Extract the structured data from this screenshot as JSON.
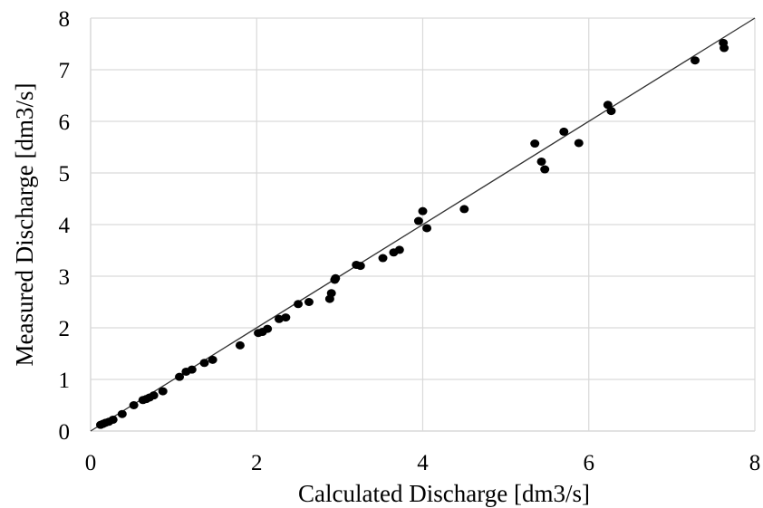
{
  "chart_data": {
    "type": "scatter",
    "title": "",
    "xlabel": "Calculated Discharge [dm3/s]",
    "ylabel": "Measured Discharge [dm3/s]",
    "xlim": [
      0,
      8
    ],
    "ylim": [
      0,
      8
    ],
    "x_ticks": [
      0,
      2,
      4,
      6,
      8
    ],
    "y_ticks": [
      0,
      1,
      2,
      3,
      4,
      5,
      6,
      7,
      8
    ],
    "grid": true,
    "legend": "none",
    "marker_color": "#000000",
    "grid_color": "#d9d9d9",
    "line_color": "#333333",
    "reference_line": {
      "x": [
        0,
        8
      ],
      "y": [
        0,
        8
      ]
    },
    "series": [
      {
        "points": [
          [
            0.12,
            0.12
          ],
          [
            0.15,
            0.14
          ],
          [
            0.18,
            0.16
          ],
          [
            0.22,
            0.18
          ],
          [
            0.27,
            0.22
          ],
          [
            0.38,
            0.33
          ],
          [
            0.52,
            0.5
          ],
          [
            0.63,
            0.6
          ],
          [
            0.67,
            0.62
          ],
          [
            0.71,
            0.65
          ],
          [
            0.76,
            0.69
          ],
          [
            0.87,
            0.77
          ],
          [
            1.07,
            1.05
          ],
          [
            1.15,
            1.15
          ],
          [
            1.22,
            1.19
          ],
          [
            1.37,
            1.32
          ],
          [
            1.47,
            1.38
          ],
          [
            1.8,
            1.66
          ],
          [
            2.02,
            1.9
          ],
          [
            2.07,
            1.92
          ],
          [
            2.13,
            1.98
          ],
          [
            2.27,
            2.17
          ],
          [
            2.35,
            2.2
          ],
          [
            2.5,
            2.46
          ],
          [
            2.63,
            2.5
          ],
          [
            2.88,
            2.56
          ],
          [
            2.9,
            2.67
          ],
          [
            2.94,
            2.93
          ],
          [
            2.95,
            2.96
          ],
          [
            3.2,
            3.22
          ],
          [
            3.25,
            3.2
          ],
          [
            3.52,
            3.35
          ],
          [
            3.65,
            3.46
          ],
          [
            3.72,
            3.51
          ],
          [
            3.95,
            4.07
          ],
          [
            4.0,
            4.26
          ],
          [
            4.05,
            3.93
          ],
          [
            4.5,
            4.3
          ],
          [
            5.35,
            5.57
          ],
          [
            5.43,
            5.22
          ],
          [
            5.47,
            5.07
          ],
          [
            5.7,
            5.8
          ],
          [
            5.88,
            5.58
          ],
          [
            6.23,
            6.32
          ],
          [
            6.27,
            6.2
          ],
          [
            7.28,
            7.18
          ],
          [
            7.62,
            7.52
          ],
          [
            7.63,
            7.42
          ]
        ]
      }
    ]
  }
}
